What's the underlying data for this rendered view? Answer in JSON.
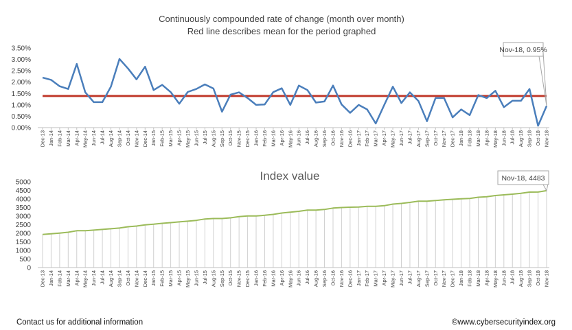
{
  "chart_data": [
    {
      "type": "line",
      "title": "Continuously compounded rate of change (month over month)",
      "subtitle": "Red line describes mean for the period graphed",
      "ylim": [
        0,
        3.5
      ],
      "yticks": [
        "0.00%",
        "0.50%",
        "1.00%",
        "1.50%",
        "2.00%",
        "2.50%",
        "3.00%",
        "3.50%"
      ],
      "categories": [
        "Dec-13",
        "Jan-14",
        "Feb-14",
        "Mar-14",
        "Apr-14",
        "May-14",
        "Jun-14",
        "Jul-14",
        "Aug-14",
        "Sep-14",
        "Oct-14",
        "Nov-14",
        "Dec-14",
        "Jan-15",
        "Feb-15",
        "Mar-15",
        "Apr-15",
        "May-15",
        "Jun-15",
        "Jul-15",
        "Aug-15",
        "Sep-15",
        "Oct-15",
        "Nov-15",
        "Dec-15",
        "Jan-16",
        "Feb-16",
        "Mar-16",
        "Apr-16",
        "May-16",
        "Jun-16",
        "Jul-16",
        "Aug-16",
        "Sep-16",
        "Oct-16",
        "Nov-16",
        "Dec-16",
        "Jan-17",
        "Feb-17",
        "Mar-17",
        "Apr-17",
        "May-17",
        "Jun-17",
        "Jul-17",
        "Aug-17",
        "Sep-17",
        "Oct-17",
        "Nov-17",
        "Dec-17",
        "Jan-18",
        "Feb-18",
        "Mar-18",
        "Apr-18",
        "May-18",
        "Jun-18",
        "Jul-18",
        "Aug-18",
        "Sep-18",
        "Oct-18",
        "Nov-18"
      ],
      "series": [
        {
          "values": [
            2.2,
            2.1,
            1.82,
            1.7,
            2.8,
            1.55,
            1.12,
            1.12,
            1.8,
            3.02,
            2.6,
            2.12,
            2.68,
            1.65,
            1.88,
            1.56,
            1.05,
            1.57,
            1.7,
            1.9,
            1.72,
            0.7,
            1.45,
            1.55,
            1.3,
            1.0,
            1.02,
            1.56,
            1.73,
            1.0,
            1.85,
            1.65,
            1.1,
            1.15,
            1.85,
            1.02,
            0.65,
            1.0,
            0.8,
            0.18,
            1.0,
            1.8,
            1.08,
            1.55,
            1.17,
            0.28,
            1.3,
            1.3,
            0.45,
            0.8,
            0.55,
            1.43,
            1.3,
            1.62,
            0.9,
            1.18,
            1.18,
            1.7,
            0.08,
            0.95
          ],
          "color": "#4a7ebb"
        },
        {
          "values_mean": 1.39,
          "color": "#c0392b"
        }
      ],
      "annotation": "Nov-18, 0.95%"
    },
    {
      "type": "line",
      "title": "Index value",
      "ylim": [
        0,
        5000
      ],
      "yticks": [
        "0",
        "500",
        "1000",
        "1500",
        "2000",
        "2500",
        "3000",
        "3500",
        "4000",
        "4500",
        "5000"
      ],
      "series": [
        {
          "values": [
            1930,
            1973,
            2013,
            2060,
            2150,
            2150,
            2183,
            2225,
            2265,
            2305,
            2380,
            2420,
            2490,
            2530,
            2580,
            2620,
            2665,
            2705,
            2752,
            2832,
            2860,
            2860,
            2900,
            2970,
            3010,
            3010,
            3050,
            3100,
            3180,
            3230,
            3280,
            3350,
            3350,
            3390,
            3470,
            3500,
            3520,
            3530,
            3570,
            3570,
            3610,
            3700,
            3740,
            3800,
            3870,
            3870,
            3910,
            3950,
            3980,
            4010,
            4030,
            4100,
            4130,
            4200,
            4240,
            4280,
            4330,
            4400,
            4403,
            4483
          ],
          "color": "#9bbb59"
        }
      ],
      "annotation": "Nov-18, 4483"
    }
  ],
  "footer": {
    "left": "Contact us for additional information",
    "right": "©www.cybersecurityindex.org"
  }
}
